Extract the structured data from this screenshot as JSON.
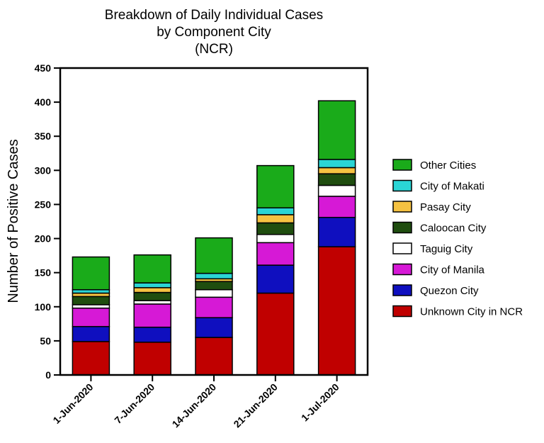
{
  "chart_data": {
    "type": "bar",
    "stacked": true,
    "title": [
      "Breakdown of Daily Individual Cases",
      "by Component City",
      "(NCR)"
    ],
    "xlabel": "",
    "ylabel": "Number of Positive Cases",
    "ylim": [
      0,
      450
    ],
    "yticks": [
      0,
      50,
      100,
      150,
      200,
      250,
      300,
      350,
      400,
      450
    ],
    "categories": [
      "1-Jun-2020",
      "7-Jun-2020",
      "14-Jun-2020",
      "21-Jun-2020",
      "1-Jul-2020"
    ],
    "legend_position": "right",
    "series": [
      {
        "name": "Unknown City in NCR",
        "color": "#c00000",
        "values": [
          49,
          48,
          55,
          120,
          188
        ]
      },
      {
        "name": "Quezon City",
        "color": "#0f0fbf",
        "values": [
          22,
          22,
          29,
          41,
          43
        ]
      },
      {
        "name": "City of Manila",
        "color": "#d619d6",
        "values": [
          27,
          34,
          30,
          33,
          31
        ]
      },
      {
        "name": "Taguig City",
        "color": "#ffffff",
        "values": [
          5,
          5,
          11,
          12,
          16
        ]
      },
      {
        "name": "Caloocan City",
        "color": "#1f4d0f",
        "values": [
          12,
          12,
          12,
          17,
          17
        ]
      },
      {
        "name": "Pasay City",
        "color": "#f5c242",
        "values": [
          5,
          7,
          4,
          12,
          9
        ]
      },
      {
        "name": "City of Makati",
        "color": "#2ad5d5",
        "values": [
          5,
          7,
          8,
          10,
          12
        ]
      },
      {
        "name": "Other Cities",
        "color": "#1aab1a",
        "values": [
          48,
          41,
          52,
          62,
          86
        ]
      }
    ]
  }
}
